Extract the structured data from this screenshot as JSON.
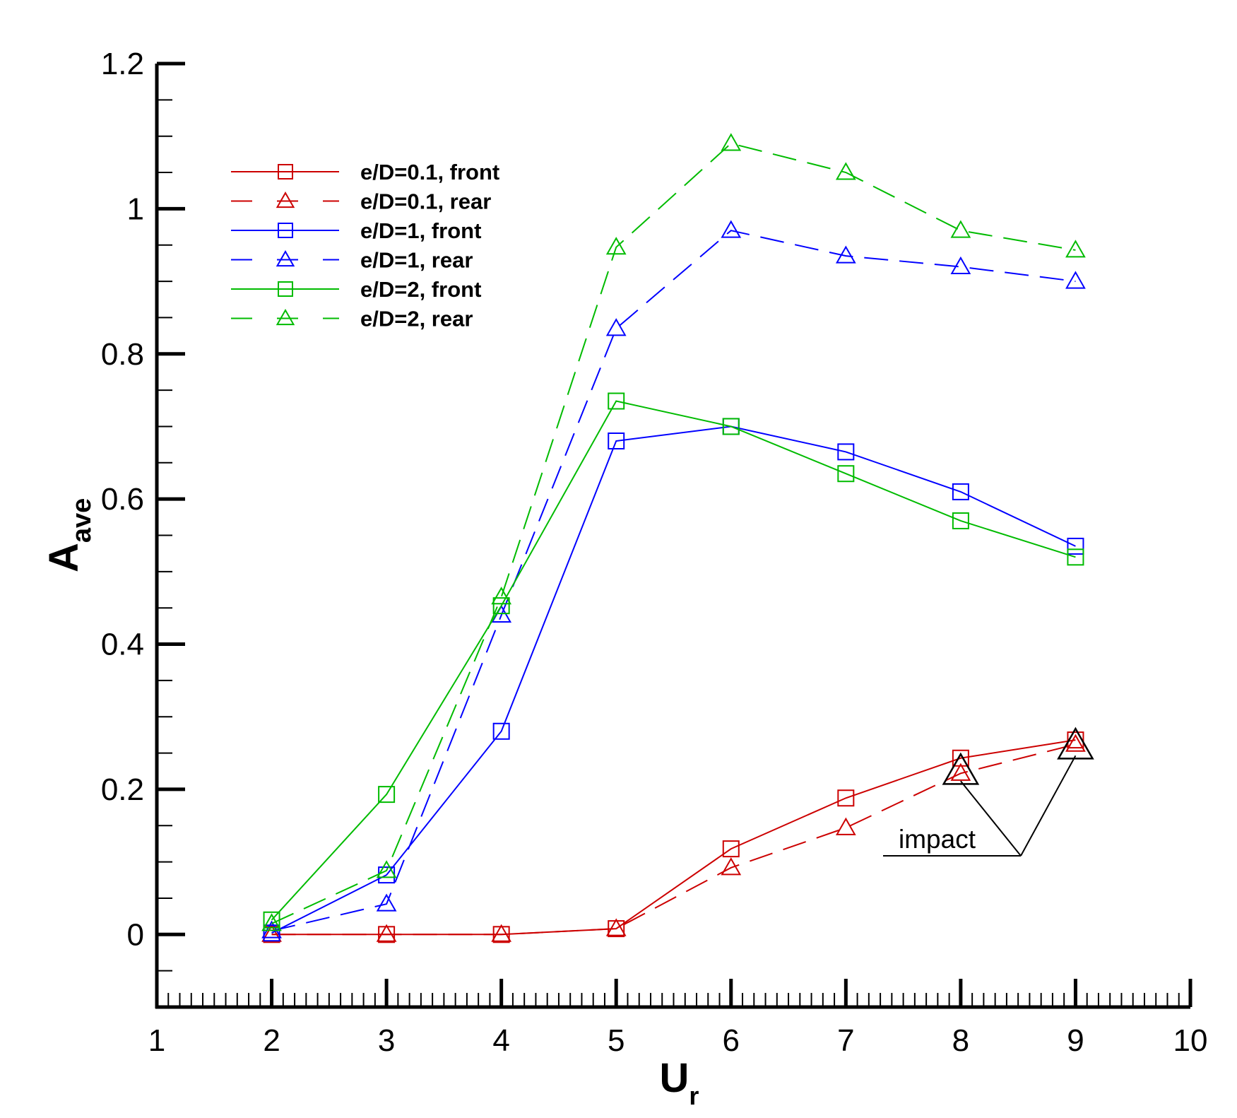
{
  "chart_data": {
    "type": "line",
    "xlabel": {
      "main": "U",
      "sub": "r"
    },
    "ylabel": {
      "main": "A",
      "sub": "ave"
    },
    "xlim": [
      1,
      10
    ],
    "ylim": [
      -0.1,
      1.2
    ],
    "xticks": [
      "1",
      "2",
      "3",
      "4",
      "5",
      "6",
      "7",
      "8",
      "9",
      "10"
    ],
    "yticks": [
      "0",
      "0.2",
      "0.4",
      "0.6",
      "0.8",
      "1",
      "1.2"
    ],
    "x": [
      2,
      3,
      4,
      5,
      6,
      7,
      8,
      9
    ],
    "series": [
      {
        "name": "e/D=0.1, front",
        "color": "#cc0000",
        "marker": "square",
        "dash": "solid",
        "values": [
          0.0,
          0.0,
          0.0,
          0.008,
          0.118,
          0.188,
          0.243,
          0.268
        ]
      },
      {
        "name": "e/D=0.1, rear",
        "color": "#cc0000",
        "marker": "triangle",
        "dash": "dashed",
        "values": [
          0.0,
          0.0,
          0.0,
          0.008,
          0.092,
          0.147,
          0.222,
          0.262
        ]
      },
      {
        "name": "e/D=1, front",
        "color": "#0000ff",
        "marker": "square",
        "dash": "solid",
        "values": [
          0.002,
          0.082,
          0.28,
          0.68,
          0.7,
          0.665,
          0.61,
          0.535
        ]
      },
      {
        "name": "e/D=1, rear",
        "color": "#0000ff",
        "marker": "triangle",
        "dash": "dashed",
        "values": [
          0.005,
          0.042,
          0.44,
          0.835,
          0.97,
          0.935,
          0.92,
          0.9
        ]
      },
      {
        "name": "e/D=2, front",
        "color": "#00bb00",
        "marker": "square",
        "dash": "solid",
        "values": [
          0.02,
          0.193,
          0.453,
          0.735,
          0.7,
          0.635,
          0.57,
          0.52
        ]
      },
      {
        "name": "e/D=2, rear",
        "color": "#00bb00",
        "marker": "triangle",
        "dash": "dashed",
        "values": [
          0.015,
          0.088,
          0.465,
          0.947,
          1.09,
          1.05,
          0.97,
          0.943
        ]
      }
    ],
    "annotation": {
      "text": "impact",
      "targets": [
        [
          8,
          0.225
        ],
        [
          9,
          0.26
        ]
      ]
    },
    "legend": "top-left"
  }
}
